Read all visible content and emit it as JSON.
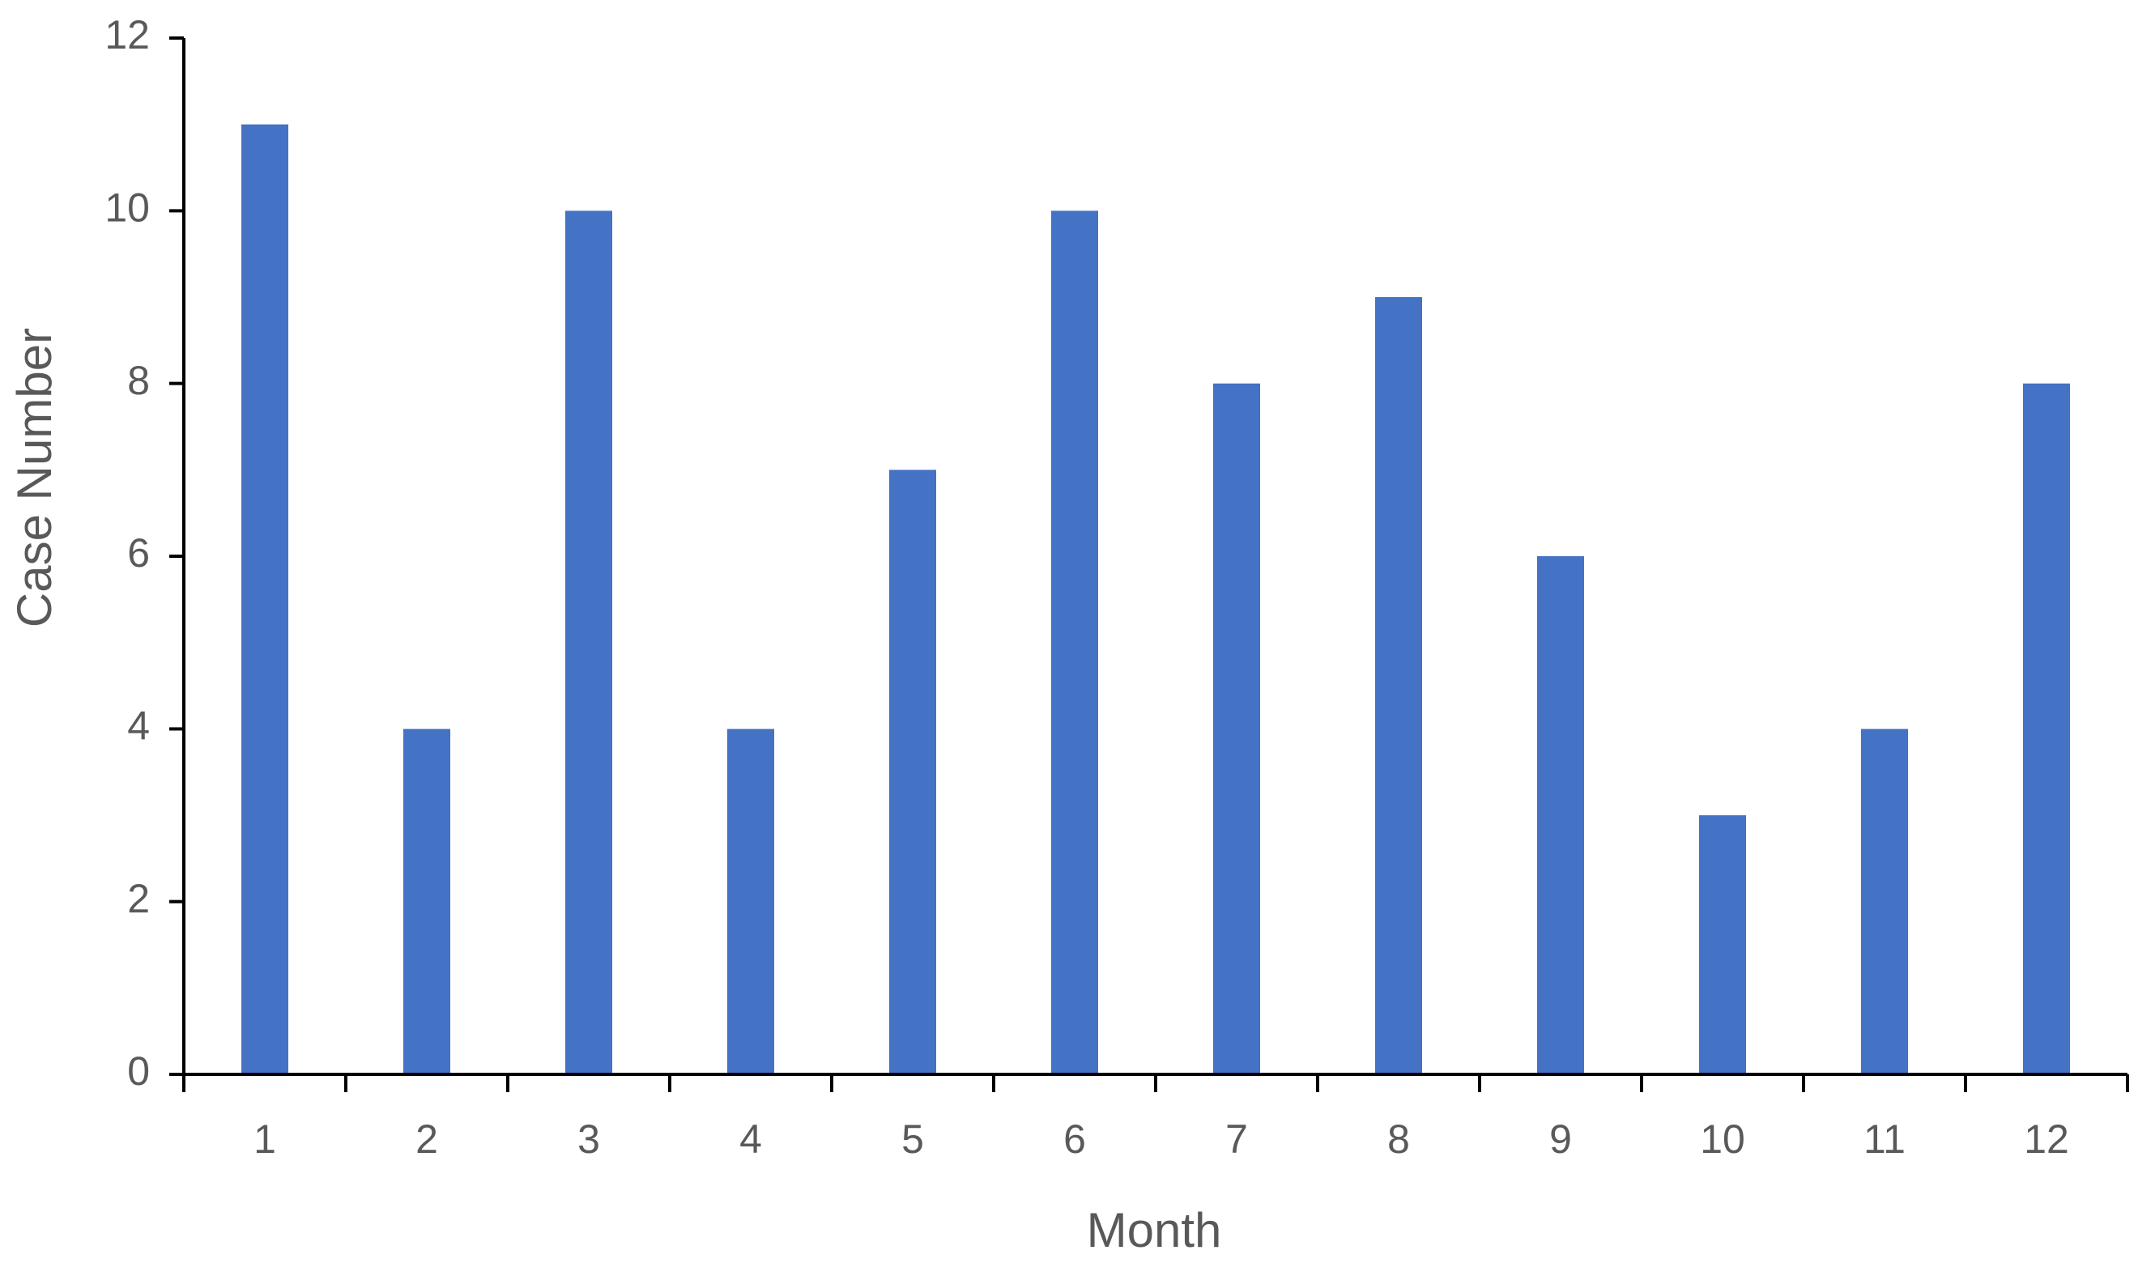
{
  "chart_data": {
    "type": "bar",
    "x_label": "Month",
    "y_label": "Case Number",
    "categories": [
      "1",
      "2",
      "3",
      "4",
      "5",
      "6",
      "7",
      "8",
      "9",
      "10",
      "11",
      "12"
    ],
    "values": [
      11,
      4,
      10,
      4,
      7,
      10,
      8,
      9,
      6,
      3,
      4,
      8
    ],
    "color": "#4472c4",
    "ylim": [
      0,
      12
    ],
    "yticks": [
      0,
      2,
      4,
      6,
      8,
      10,
      12
    ],
    "grid": false
  }
}
